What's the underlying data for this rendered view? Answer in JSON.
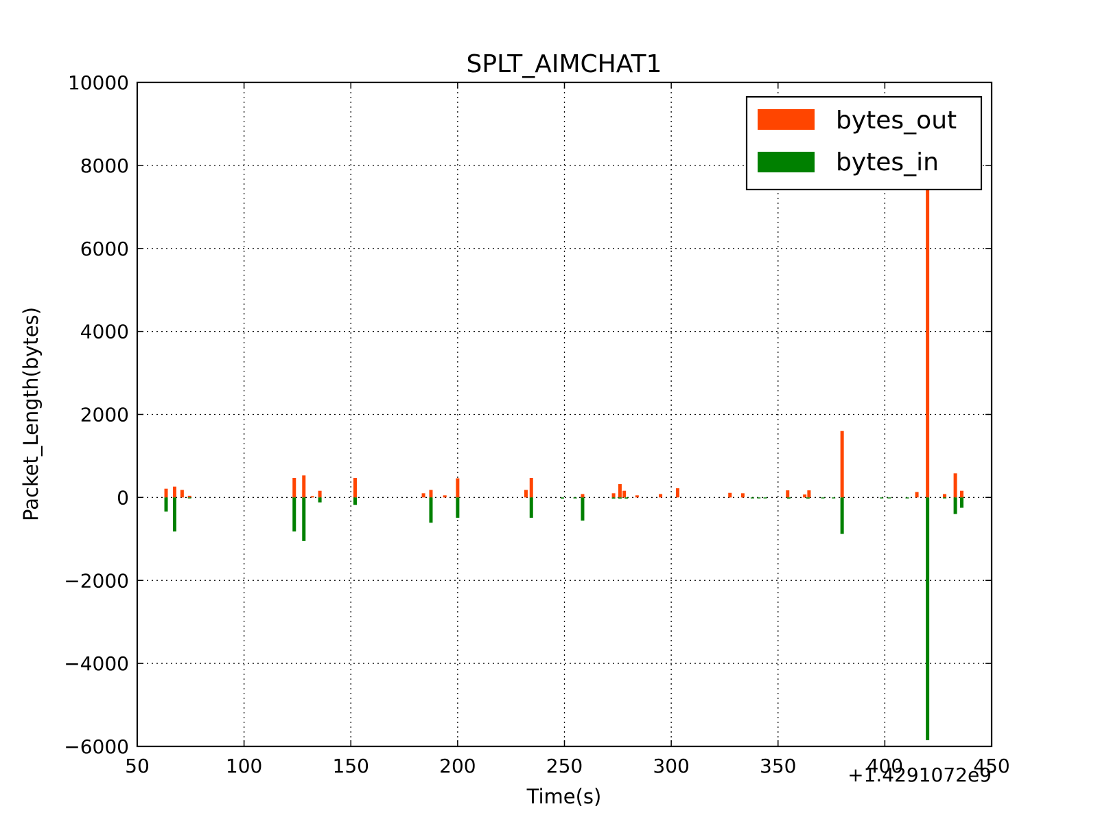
{
  "chart_data": {
    "type": "bar",
    "title": "SPLT_AIMCHAT1",
    "xlabel": "Time(s)",
    "ylabel": "Packet_Length(bytes)",
    "x_offset_label": "+1.4291072e9",
    "xlim": [
      50,
      450
    ],
    "ylim": [
      -6000,
      10000
    ],
    "xticks": [
      "50",
      "100",
      "150",
      "200",
      "250",
      "300",
      "350",
      "400",
      "450"
    ],
    "yticks": [
      "−6000",
      "−4000",
      "−2000",
      "0",
      "2000",
      "4000",
      "6000",
      "8000",
      "10000"
    ],
    "grid": true,
    "legend_position": "top-right",
    "series": [
      {
        "name": "bytes_out",
        "color": "#ff4500",
        "points": [
          [
            63.5,
            210
          ],
          [
            67.5,
            260
          ],
          [
            71,
            180
          ],
          [
            74.5,
            40
          ],
          [
            123.5,
            470
          ],
          [
            128,
            530
          ],
          [
            132,
            30
          ],
          [
            135.5,
            160
          ],
          [
            152,
            470
          ],
          [
            184,
            100
          ],
          [
            187.5,
            180
          ],
          [
            194,
            50
          ],
          [
            200,
            460
          ],
          [
            232,
            180
          ],
          [
            234.5,
            470
          ],
          [
            258.5,
            80
          ],
          [
            273,
            100
          ],
          [
            276,
            320
          ],
          [
            278,
            160
          ],
          [
            284,
            50
          ],
          [
            295,
            80
          ],
          [
            303,
            220
          ],
          [
            327.5,
            110
          ],
          [
            333.5,
            100
          ],
          [
            354.5,
            170
          ],
          [
            362.5,
            70
          ],
          [
            364.5,
            170
          ],
          [
            380,
            1600
          ],
          [
            415,
            130
          ],
          [
            420,
            7600
          ],
          [
            428,
            80
          ],
          [
            433,
            580
          ],
          [
            436,
            160
          ]
        ]
      },
      {
        "name": "bytes_in",
        "color": "#008000",
        "points": [
          [
            63.5,
            -340
          ],
          [
            67.5,
            -820
          ],
          [
            74.5,
            -20
          ],
          [
            123.5,
            -820
          ],
          [
            128,
            -1050
          ],
          [
            135.5,
            -120
          ],
          [
            152,
            -180
          ],
          [
            187.5,
            -610
          ],
          [
            200,
            -490
          ],
          [
            234.5,
            -490
          ],
          [
            249,
            -30
          ],
          [
            255,
            -20
          ],
          [
            258.5,
            -560
          ],
          [
            273,
            -30
          ],
          [
            276,
            -30
          ],
          [
            279,
            -30
          ],
          [
            338,
            -20
          ],
          [
            341,
            -20
          ],
          [
            344,
            -20
          ],
          [
            355,
            -30
          ],
          [
            364,
            -30
          ],
          [
            371,
            -20
          ],
          [
            376,
            -20
          ],
          [
            380,
            -880
          ],
          [
            398.5,
            -20
          ],
          [
            402,
            -20
          ],
          [
            410.5,
            -20
          ],
          [
            420,
            -5850
          ],
          [
            428,
            -20
          ],
          [
            433,
            -400
          ],
          [
            436,
            -250
          ]
        ]
      }
    ]
  }
}
